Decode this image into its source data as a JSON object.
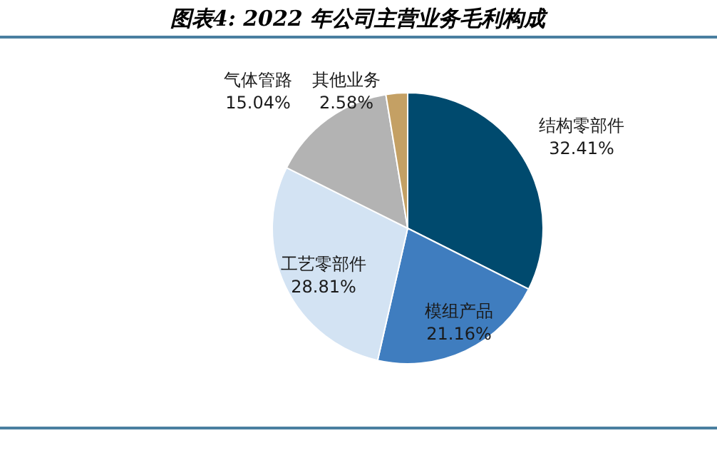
{
  "chart_data": {
    "type": "pie",
    "title": "图表4: 2022 年公司主营业务毛利构成",
    "categories": [
      "结构零部件",
      "模组产品",
      "工艺零部件",
      "气体管路",
      "其他业务"
    ],
    "values": [
      32.41,
      21.16,
      28.81,
      15.04,
      2.58
    ],
    "value_labels": [
      "32.41%",
      "21.16%",
      "28.81%",
      "15.04%",
      "2.58%"
    ],
    "colors": [
      "#004a6e",
      "#3f7dbf",
      "#d3e3f3",
      "#b3b3b3",
      "#c4a064"
    ]
  }
}
